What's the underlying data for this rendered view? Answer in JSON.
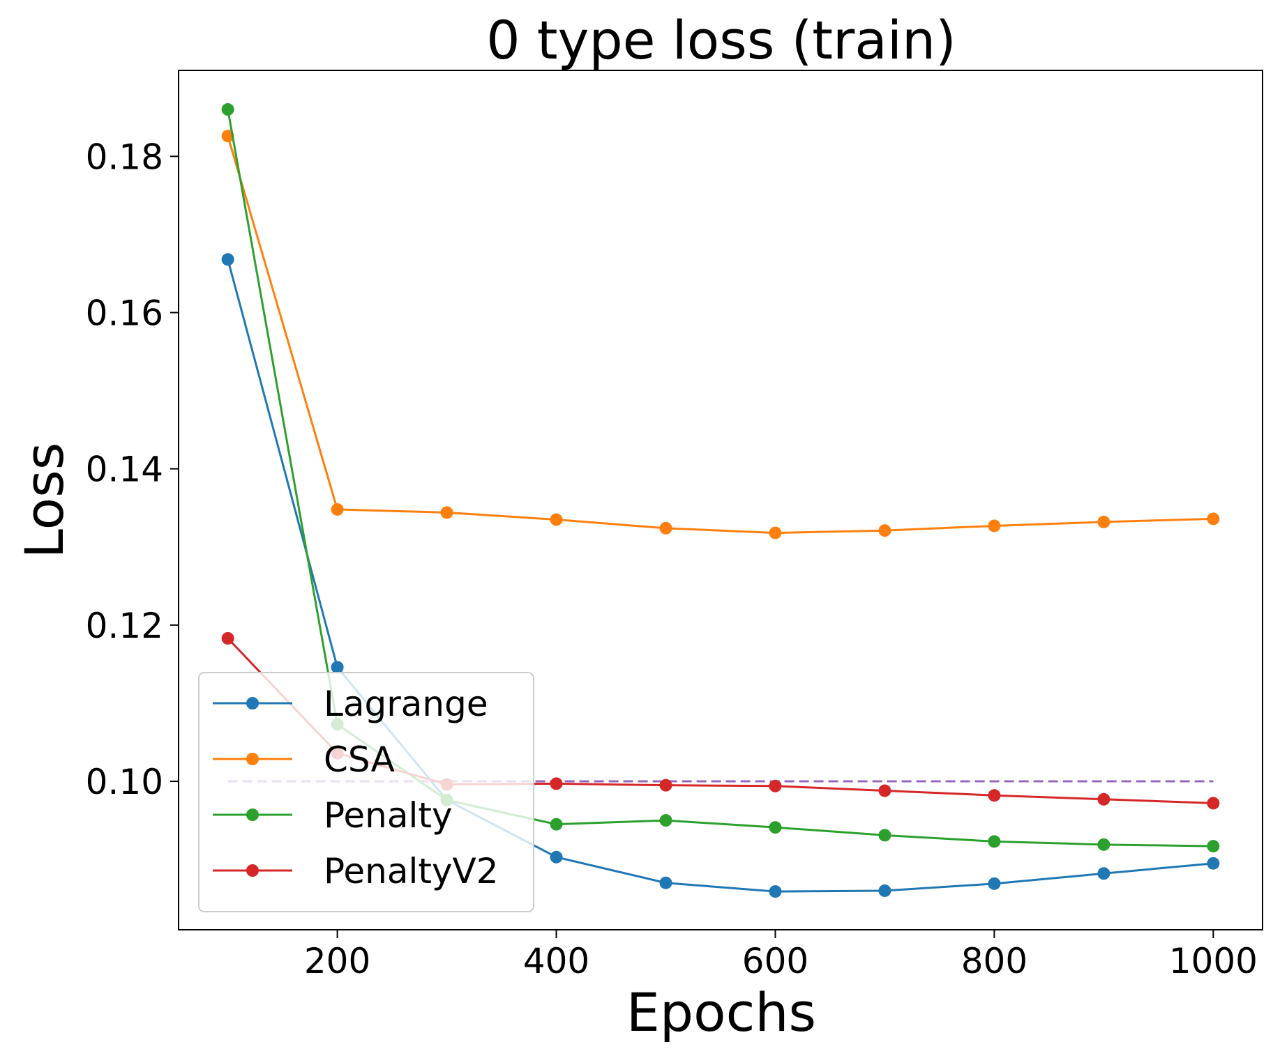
{
  "chart_data": {
    "type": "line",
    "title": "0 type loss (train)",
    "xlabel": "Epochs",
    "ylabel": "Loss",
    "xlim": [
      55,
      1045
    ],
    "ylim": [
      0.081,
      0.191
    ],
    "x_ticks": [
      200,
      400,
      600,
      800,
      1000
    ],
    "x_tick_labels": [
      "200",
      "400",
      "600",
      "800",
      "1000"
    ],
    "y_ticks": [
      0.1,
      0.12,
      0.14,
      0.16,
      0.18
    ],
    "y_tick_labels": [
      "0.10",
      "0.12",
      "0.14",
      "0.16",
      "0.18"
    ],
    "grid": false,
    "legend_position": "lower left",
    "x": [
      100,
      200,
      300,
      400,
      500,
      600,
      700,
      800,
      900,
      1000
    ],
    "series": [
      {
        "name": "Lagrange",
        "color": "#1f77b4",
        "marker": "circle",
        "values": [
          0.1668,
          0.1146,
          0.0976,
          0.0903,
          0.087,
          0.0859,
          0.086,
          0.0869,
          0.0882,
          0.0895
        ]
      },
      {
        "name": "CSA",
        "color": "#ff7f0e",
        "marker": "circle",
        "values": [
          0.1826,
          0.1348,
          0.1344,
          0.1335,
          0.1324,
          0.1318,
          0.1321,
          0.1327,
          0.1332,
          0.1336
        ]
      },
      {
        "name": "Penalty",
        "color": "#2ca02c",
        "marker": "circle",
        "values": [
          0.186,
          0.1073,
          0.0976,
          0.0945,
          0.095,
          0.0941,
          0.0931,
          0.0923,
          0.0919,
          0.0917
        ]
      },
      {
        "name": "PenaltyV2",
        "color": "#d62728",
        "marker": "circle",
        "values": [
          0.1183,
          0.1036,
          0.0996,
          0.0997,
          0.0995,
          0.0994,
          0.0988,
          0.0982,
          0.0977,
          0.0972
        ]
      }
    ],
    "reference_lines": [
      {
        "y": 0.1,
        "x_range": [
          100,
          1000
        ],
        "style": "dashed",
        "color": "#9467bd"
      }
    ]
  }
}
